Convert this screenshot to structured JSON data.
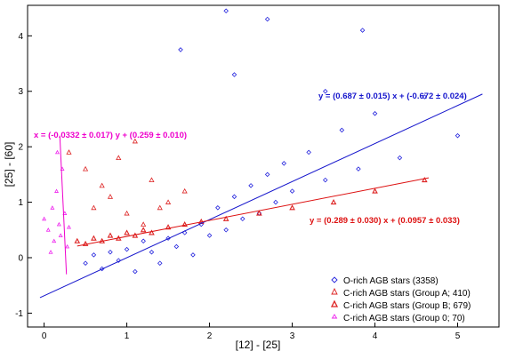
{
  "chart_data": {
    "type": "scatter",
    "xlabel": "[12] - [25]",
    "ylabel": "[25] - [60]",
    "xlim": [
      -0.2,
      5.5
    ],
    "ylim": [
      -1.25,
      4.55
    ],
    "xticks": [
      0,
      1,
      2,
      3,
      4,
      5
    ],
    "yticks": [
      -1,
      0,
      1,
      2,
      3,
      4
    ],
    "grid": false,
    "legend_position": "bottom-right",
    "series": [
      {
        "name": "O-rich AGB stars (3358)",
        "marker": "diamond",
        "color": "#2222dd",
        "points": [
          [
            0.5,
            -0.1
          ],
          [
            0.6,
            0.05
          ],
          [
            0.7,
            -0.2
          ],
          [
            0.8,
            0.1
          ],
          [
            0.9,
            -0.05
          ],
          [
            1.0,
            0.15
          ],
          [
            1.1,
            -0.25
          ],
          [
            1.2,
            0.3
          ],
          [
            1.3,
            0.1
          ],
          [
            1.4,
            -0.1
          ],
          [
            1.5,
            0.35
          ],
          [
            1.6,
            0.2
          ],
          [
            1.7,
            0.45
          ],
          [
            1.8,
            0.05
          ],
          [
            1.9,
            0.6
          ],
          [
            2.0,
            0.4
          ],
          [
            2.1,
            0.9
          ],
          [
            2.2,
            0.5
          ],
          [
            2.3,
            1.1
          ],
          [
            2.4,
            0.7
          ],
          [
            2.5,
            1.3
          ],
          [
            2.6,
            0.8
          ],
          [
            2.7,
            1.5
          ],
          [
            2.8,
            1.0
          ],
          [
            2.9,
            1.7
          ],
          [
            3.0,
            1.2
          ],
          [
            3.2,
            1.9
          ],
          [
            3.4,
            1.4
          ],
          [
            3.6,
            2.3
          ],
          [
            3.8,
            1.6
          ],
          [
            4.0,
            2.6
          ],
          [
            4.3,
            1.8
          ],
          [
            4.6,
            2.9
          ],
          [
            5.0,
            2.2
          ],
          [
            2.2,
            4.45
          ],
          [
            2.7,
            4.3
          ],
          [
            3.85,
            4.1
          ],
          [
            1.65,
            3.75
          ],
          [
            2.3,
            3.3
          ],
          [
            3.4,
            3.0
          ]
        ]
      },
      {
        "name": "C-rich AGB stars (Group A; 410)",
        "marker": "triangle-open",
        "color": "#dd2222",
        "points": [
          [
            0.3,
            1.9
          ],
          [
            0.5,
            1.6
          ],
          [
            0.7,
            1.3
          ],
          [
            0.9,
            1.8
          ],
          [
            1.1,
            2.1
          ],
          [
            1.3,
            1.4
          ],
          [
            1.5,
            1.0
          ],
          [
            1.7,
            1.2
          ],
          [
            0.6,
            0.9
          ],
          [
            0.8,
            1.1
          ],
          [
            1.0,
            0.8
          ],
          [
            1.2,
            0.6
          ],
          [
            1.4,
            0.9
          ]
        ]
      },
      {
        "name": "C-rich AGB stars (Group B; 679)",
        "marker": "triangle",
        "color": "#dd2222",
        "points": [
          [
            0.4,
            0.3
          ],
          [
            0.5,
            0.25
          ],
          [
            0.6,
            0.35
          ],
          [
            0.7,
            0.3
          ],
          [
            0.8,
            0.4
          ],
          [
            0.9,
            0.35
          ],
          [
            1.0,
            0.45
          ],
          [
            1.1,
            0.4
          ],
          [
            1.2,
            0.5
          ],
          [
            1.3,
            0.45
          ],
          [
            1.5,
            0.55
          ],
          [
            1.7,
            0.6
          ],
          [
            1.9,
            0.65
          ],
          [
            2.2,
            0.7
          ],
          [
            2.6,
            0.8
          ],
          [
            3.0,
            0.9
          ],
          [
            3.5,
            1.0
          ],
          [
            4.0,
            1.2
          ],
          [
            4.6,
            1.4
          ]
        ]
      },
      {
        "name": "C-rich AGB stars (Group 0; 70)",
        "marker": "triangle-small",
        "color": "#ee22ee",
        "points": [
          [
            0.0,
            0.7
          ],
          [
            0.05,
            0.5
          ],
          [
            0.1,
            0.9
          ],
          [
            0.12,
            0.3
          ],
          [
            0.15,
            1.2
          ],
          [
            0.18,
            0.6
          ],
          [
            0.2,
            0.4
          ],
          [
            0.22,
            1.6
          ],
          [
            0.25,
            0.8
          ],
          [
            0.28,
            0.2
          ],
          [
            0.3,
            0.55
          ],
          [
            0.08,
            0.1
          ],
          [
            0.16,
            1.9
          ]
        ]
      }
    ],
    "fit_lines": [
      {
        "equation": "y = (0.687 ±  0.015) x + (-0.672 ±  0.024)",
        "color": "#1515cc",
        "x": [
          -0.05,
          5.3
        ],
        "y": [
          -0.72,
          2.95
        ]
      },
      {
        "equation": "y = (0.289 ±  0.030) x + (0.0957 ±  0.033)",
        "color": "#dd1111",
        "x": [
          0.4,
          4.65
        ],
        "y": [
          0.21,
          1.44
        ]
      },
      {
        "equation": "x = (-0.0332 ±  0.017) y + (0.259 ±  0.010)",
        "color": "#ee00cc",
        "x": [
          0.19,
          0.27
        ],
        "y": [
          2.2,
          -0.3
        ]
      }
    ]
  }
}
